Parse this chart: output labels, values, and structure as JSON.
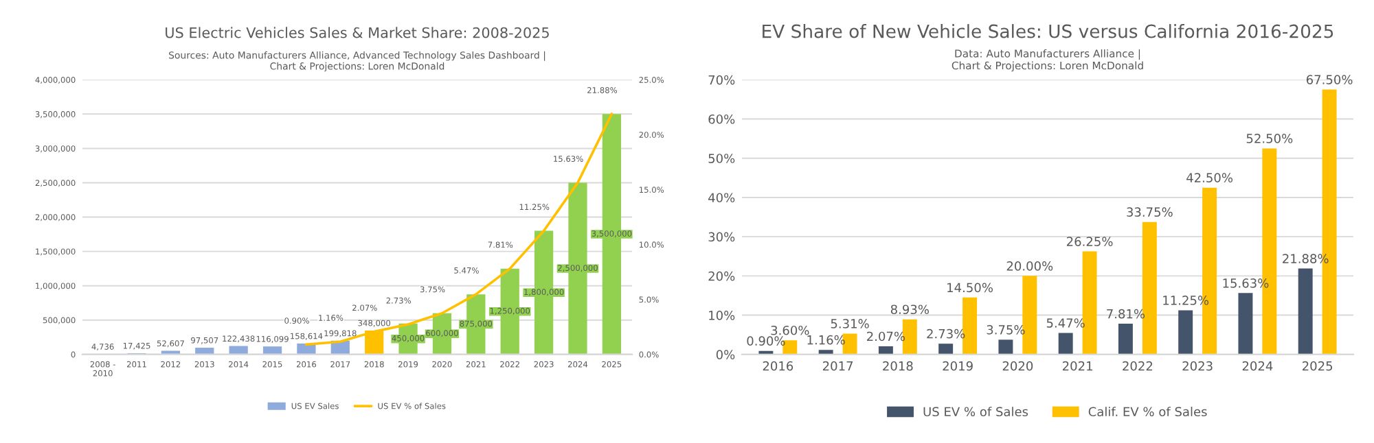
{
  "chart_data": [
    {
      "type": "bar",
      "title": "US Electric Vehicles Sales & Market Share: 2008-2025",
      "subtitle": "Sources: Auto Manufacturers Alliance, Advanced Technology Sales Dashboard |\nChart & Projections: Loren McDonald",
      "categories": [
        "2008 -\n2010",
        "2011",
        "2012",
        "2013",
        "2014",
        "2015",
        "2016",
        "2017",
        "2018",
        "2019",
        "2020",
        "2021",
        "2022",
        "2023",
        "2024",
        "2025"
      ],
      "series": [
        {
          "name": "US EV Sales",
          "type": "bar",
          "color": "#8faadc",
          "colors": [
            "#8faadc",
            "#8faadc",
            "#8faadc",
            "#8faadc",
            "#8faadc",
            "#8faadc",
            "#8faadc",
            "#8faadc",
            "#ffc000",
            "#92d050",
            "#92d050",
            "#92d050",
            "#92d050",
            "#92d050",
            "#92d050",
            "#92d050"
          ],
          "values": [
            4736,
            17425,
            52607,
            97507,
            122438,
            116099,
            158614,
            199818,
            348000,
            450000,
            600000,
            875000,
            1250000,
            1800000,
            2500000,
            3500000
          ],
          "value_labels": [
            "4,736",
            "17,425",
            "52,607",
            "97,507",
            "122,438",
            "116,099",
            "158,614",
            "199,818",
            "348,000",
            "450,000",
            "600,000",
            "875,000",
            "1,250,000",
            "1,800,000",
            "2,500,000",
            "3,500,000"
          ]
        },
        {
          "name": "US EV % of Sales",
          "type": "line",
          "axis": "y2",
          "color": "#ffc000",
          "marker": "none",
          "values": [
            null,
            null,
            null,
            null,
            null,
            null,
            0.9,
            1.16,
            2.07,
            2.73,
            3.75,
            5.47,
            7.81,
            11.25,
            15.63,
            21.88
          ],
          "value_labels": [
            null,
            null,
            null,
            null,
            null,
            null,
            "0.90%",
            "1.16%",
            "2.07%",
            "2.73%",
            "3.75%",
            "5.47%",
            "7.81%",
            "11.25%",
            "15.63%",
            "21.88%"
          ]
        }
      ],
      "ylim": [
        0,
        4000000
      ],
      "yticks": [
        {
          "value": 0,
          "label": "0"
        },
        {
          "value": 500000,
          "label": "500,000"
        },
        {
          "value": 1000000,
          "label": "1,000,000"
        },
        {
          "value": 1500000,
          "label": "1,500,000"
        },
        {
          "value": 2000000,
          "label": "2,000,000"
        },
        {
          "value": 2500000,
          "label": "2,500,000"
        },
        {
          "value": 3000000,
          "label": "3,000,000"
        },
        {
          "value": 3500000,
          "label": "3,500,000"
        },
        {
          "value": 4000000,
          "label": "4,000,000"
        }
      ],
      "y2lim": [
        0,
        25
      ],
      "y2ticks": [
        {
          "value": 0,
          "label": "0.0%"
        },
        {
          "value": 5,
          "label": "5.0%"
        },
        {
          "value": 10,
          "label": "10.0%"
        },
        {
          "value": 15,
          "label": "15.0%"
        },
        {
          "value": 20,
          "label": "20.0%"
        },
        {
          "value": 25,
          "label": "25.0%"
        }
      ],
      "grid": "y",
      "legend": "bottom"
    },
    {
      "type": "bar",
      "title": "EV Share of New Vehicle Sales: US versus California 2016-2025",
      "subtitle": "Data: Auto Manufacturers Alliance |\nChart & Projections: Loren McDonald",
      "categories": [
        "2016",
        "2017",
        "2018",
        "2019",
        "2020",
        "2021",
        "2022",
        "2023",
        "2024",
        "2025"
      ],
      "series": [
        {
          "name": "US EV % of Sales",
          "color": "#44546a",
          "values": [
            0.9,
            1.16,
            2.07,
            2.73,
            3.75,
            5.47,
            7.81,
            11.25,
            15.63,
            21.88
          ],
          "value_labels": [
            "0.90%",
            "1.16%",
            "2.07%",
            "2.73%",
            "3.75%",
            "5.47%",
            "7.81%",
            "11.25%",
            "15.63%",
            "21.88%"
          ]
        },
        {
          "name": "Calif. EV % of Sales",
          "color": "#ffc000",
          "values": [
            3.6,
            5.31,
            8.93,
            14.5,
            20.0,
            26.25,
            33.75,
            42.5,
            52.5,
            67.5
          ],
          "value_labels": [
            "3.60%",
            "5.31%",
            "8.93%",
            "14.50%",
            "20.00%",
            "26.25%",
            "33.75%",
            "42.50%",
            "52.50%",
            "67.50%"
          ]
        }
      ],
      "ylim": [
        0,
        70
      ],
      "yticks": [
        {
          "value": 0,
          "label": "0%"
        },
        {
          "value": 10,
          "label": "10%"
        },
        {
          "value": 20,
          "label": "20%"
        },
        {
          "value": 30,
          "label": "30%"
        },
        {
          "value": 40,
          "label": "40%"
        },
        {
          "value": 50,
          "label": "50%"
        },
        {
          "value": 60,
          "label": "60%"
        },
        {
          "value": 70,
          "label": "70%"
        }
      ],
      "grid": "y",
      "legend": "bottom"
    }
  ]
}
